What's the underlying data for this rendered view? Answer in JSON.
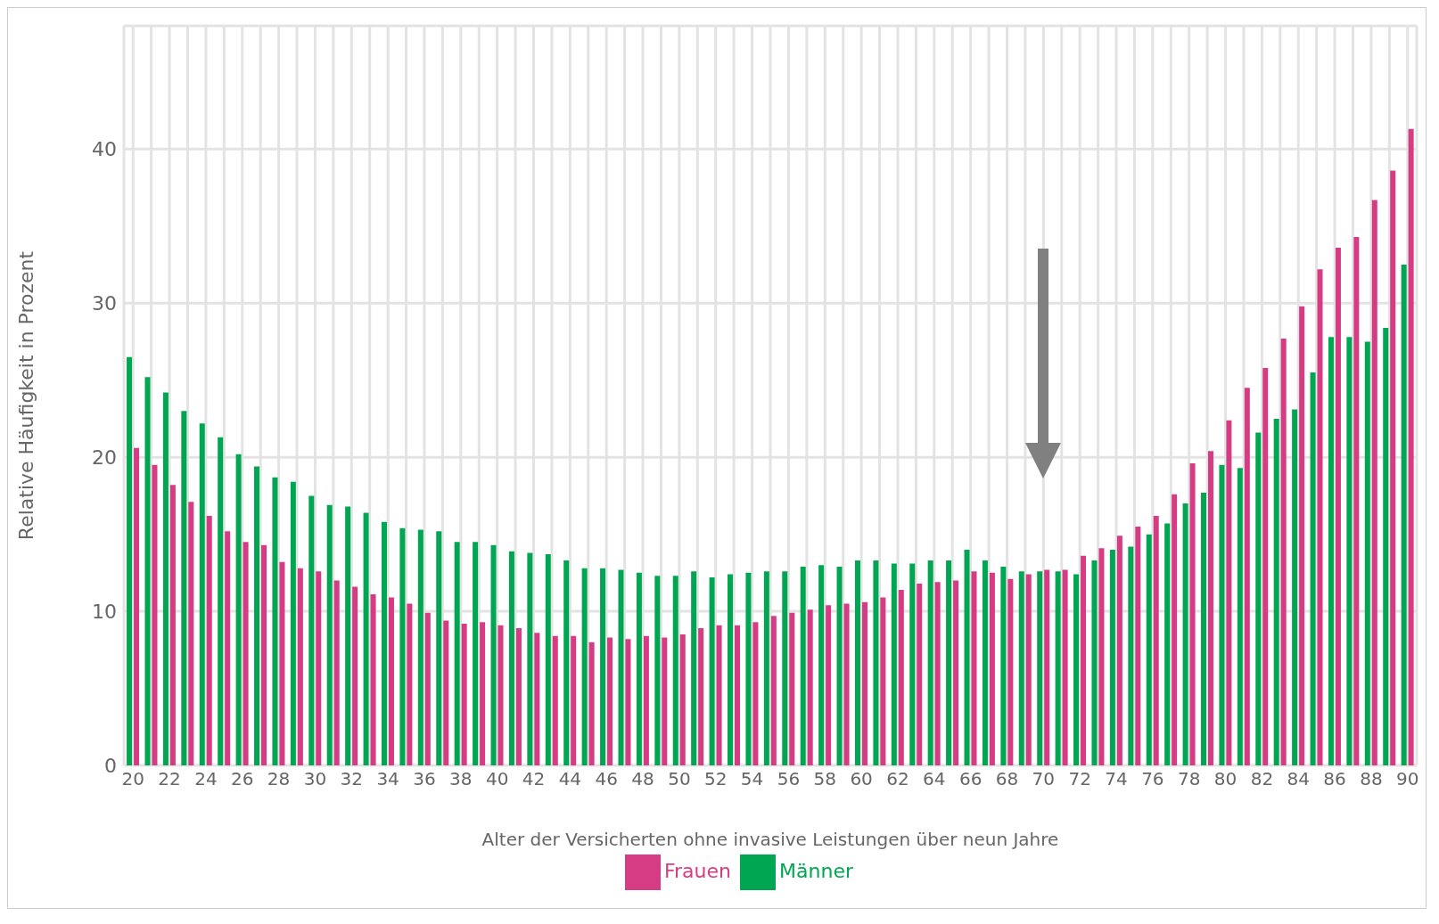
{
  "chart_data": {
    "type": "bar",
    "xlabel": "Alter der Versicherten ohne invasive Leistungen über neun Jahre",
    "ylabel": "Relative Häufigkeit in Prozent",
    "categories": [
      "20",
      null,
      "22",
      null,
      "24",
      null,
      "26",
      null,
      "28",
      null,
      "30",
      null,
      "32",
      null,
      "34",
      null,
      "36",
      null,
      "38",
      null,
      "40",
      null,
      "42",
      null,
      "44",
      null,
      "46",
      null,
      "48",
      null,
      "50",
      null,
      "52",
      null,
      "54",
      null,
      "56",
      null,
      "58",
      null,
      "60",
      null,
      "62",
      null,
      "64",
      null,
      "66",
      null,
      "68",
      null,
      "70",
      null,
      "72",
      null,
      "74",
      null,
      "76",
      null,
      "78",
      null,
      "80",
      null,
      "82",
      null,
      "84",
      null,
      "86",
      null,
      "88",
      null,
      "90"
    ],
    "series": [
      {
        "name": "Männer",
        "color": "#00a651",
        "values": [
          26.5,
          25.2,
          24.2,
          23.0,
          22.2,
          21.3,
          20.2,
          19.4,
          18.7,
          18.4,
          17.5,
          16.9,
          16.8,
          16.4,
          15.8,
          15.4,
          15.3,
          15.2,
          14.5,
          14.5,
          14.3,
          13.9,
          13.8,
          13.7,
          13.3,
          12.8,
          12.8,
          12.7,
          12.5,
          12.3,
          12.3,
          12.6,
          12.2,
          12.4,
          12.5,
          12.6,
          12.6,
          12.9,
          13.0,
          12.9,
          13.3,
          13.3,
          13.1,
          13.1,
          13.3,
          13.3,
          14.0,
          13.3,
          12.9,
          12.6,
          12.6,
          12.6,
          12.4,
          13.3,
          14.0,
          14.2,
          15.0,
          15.7,
          17.0,
          17.7,
          19.5,
          19.3,
          21.6,
          22.5,
          23.1,
          25.5,
          27.8,
          27.8,
          27.5,
          28.4,
          32.5
        ]
      },
      {
        "name": "Frauen",
        "color": "#d63c84",
        "values": [
          20.6,
          19.5,
          18.2,
          17.1,
          16.2,
          15.2,
          14.5,
          14.3,
          13.2,
          12.8,
          12.6,
          12.0,
          11.6,
          11.1,
          10.9,
          10.5,
          9.9,
          9.4,
          9.2,
          9.3,
          9.1,
          8.9,
          8.6,
          8.4,
          8.4,
          8.0,
          8.3,
          8.2,
          8.4,
          8.3,
          8.5,
          8.9,
          9.1,
          9.1,
          9.3,
          9.7,
          9.9,
          10.1,
          10.4,
          10.5,
          10.6,
          10.9,
          11.4,
          11.8,
          11.9,
          12.0,
          12.6,
          12.5,
          12.1,
          12.4,
          12.7,
          12.7,
          13.6,
          14.1,
          14.9,
          15.5,
          16.2,
          17.6,
          19.6,
          20.4,
          22.4,
          24.5,
          25.8,
          27.7,
          29.8,
          32.2,
          33.6,
          34.3,
          36.7,
          38.6,
          41.3
        ]
      }
    ],
    "ylim": [
      0,
      48
    ],
    "yticks": [
      0,
      10,
      20,
      30,
      40
    ],
    "grid": true,
    "legend": "bottom"
  }
}
